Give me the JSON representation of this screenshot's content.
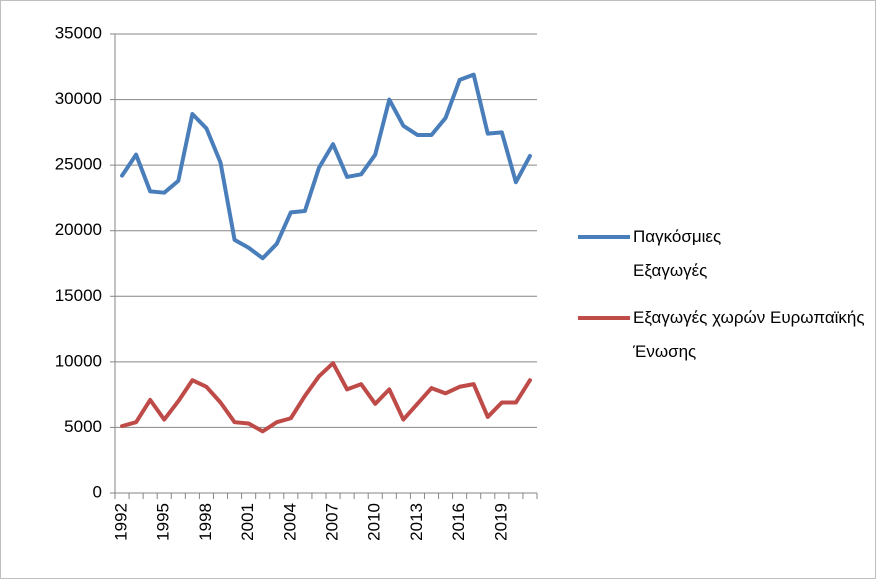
{
  "chart_data": {
    "type": "line",
    "categories": [
      1992,
      null,
      null,
      1995,
      null,
      null,
      1998,
      null,
      null,
      2001,
      null,
      null,
      2004,
      null,
      null,
      2007,
      null,
      null,
      2010,
      null,
      null,
      2013,
      null,
      null,
      2016,
      null,
      null,
      2019,
      null,
      null
    ],
    "series": [
      {
        "name": "Παγκόσμιες Εξαγωγές",
        "color": "#4a7ebb",
        "values": [
          24200,
          25800,
          23000,
          22900,
          23800,
          28900,
          27800,
          25200,
          19300,
          18700,
          17900,
          19000,
          21400,
          21500,
          24800,
          26600,
          24100,
          24300,
          25800,
          30000,
          28000,
          27300,
          27300,
          28600,
          31500,
          31900,
          27400,
          27500,
          23700,
          25700
        ]
      },
      {
        "name": "Εξαγωγές χωρών Ευρωπαϊκής Ένωσης",
        "color": "#be4b48",
        "values": [
          5100,
          5400,
          7100,
          5600,
          7000,
          8600,
          8100,
          6900,
          5400,
          5300,
          4700,
          5400,
          5700,
          7400,
          8900,
          9900,
          7900,
          8300,
          6800,
          7900,
          5600,
          6800,
          8000,
          7600,
          8100,
          8300,
          5800,
          6900,
          6900,
          8600
        ]
      }
    ],
    "ylim": [
      0,
      35000
    ],
    "yticks": [
      0,
      5000,
      10000,
      15000,
      20000,
      25000,
      30000,
      35000
    ],
    "grid": true,
    "legend": "right"
  }
}
